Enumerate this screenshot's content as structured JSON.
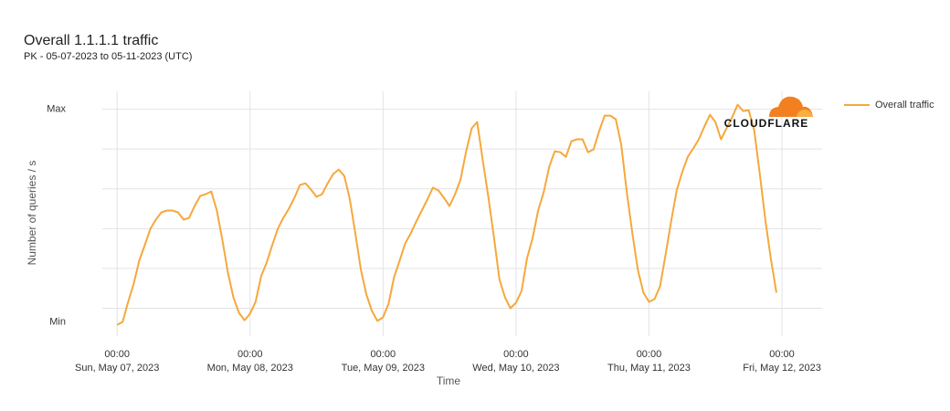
{
  "chart_data": {
    "type": "line",
    "title": "Overall 1.1.1.1 traffic",
    "subtitle": "PK - 05-07-2023 to 05-11-2023 (UTC)",
    "ylabel": "Number of queries / s",
    "xlabel": "Time",
    "watermark": "CLOUDFLARE",
    "legend": "right",
    "ylim": [
      -14,
      109
    ],
    "yticks": [
      {
        "value": -7,
        "label": "Min"
      },
      {
        "value": 100,
        "label": "Max"
      }
    ],
    "ygrid": [
      0,
      20,
      40,
      60,
      80,
      100
    ],
    "xlim": [
      "2023-05-06T21:20",
      "2023-05-12T07:15"
    ],
    "xticks": [
      {
        "value": "2023-05-07T00:00",
        "label": [
          "00:00",
          "Sun, May 07, 2023"
        ]
      },
      {
        "value": "2023-05-08T00:00",
        "label": [
          "00:00",
          "Mon, May 08, 2023"
        ]
      },
      {
        "value": "2023-05-09T00:00",
        "label": [
          "00:00",
          "Tue, May 09, 2023"
        ]
      },
      {
        "value": "2023-05-10T00:00",
        "label": [
          "00:00",
          "Wed, May 10, 2023"
        ]
      },
      {
        "value": "2023-05-11T00:00",
        "label": [
          "00:00",
          "Thu, May 11, 2023"
        ]
      },
      {
        "value": "2023-05-12T00:00",
        "label": [
          "00:00",
          "Fri, May 12, 2023"
        ]
      }
    ],
    "x": [
      "2023-05-07T00:00",
      "2023-05-07T01:00",
      "2023-05-07T02:00",
      "2023-05-07T03:00",
      "2023-05-07T04:00",
      "2023-05-07T05:00",
      "2023-05-07T06:00",
      "2023-05-07T07:00",
      "2023-05-07T08:00",
      "2023-05-07T09:00",
      "2023-05-07T10:00",
      "2023-05-07T11:00",
      "2023-05-07T12:00",
      "2023-05-07T13:00",
      "2023-05-07T14:00",
      "2023-05-07T15:00",
      "2023-05-07T16:00",
      "2023-05-07T17:00",
      "2023-05-07T18:00",
      "2023-05-07T19:00",
      "2023-05-07T20:00",
      "2023-05-07T21:00",
      "2023-05-07T22:00",
      "2023-05-07T23:00",
      "2023-05-08T00:00",
      "2023-05-08T01:00",
      "2023-05-08T02:00",
      "2023-05-08T03:00",
      "2023-05-08T04:00",
      "2023-05-08T05:00",
      "2023-05-08T06:00",
      "2023-05-08T07:00",
      "2023-05-08T08:00",
      "2023-05-08T09:00",
      "2023-05-08T10:00",
      "2023-05-08T11:00",
      "2023-05-08T12:00",
      "2023-05-08T13:00",
      "2023-05-08T14:00",
      "2023-05-08T15:00",
      "2023-05-08T16:00",
      "2023-05-08T17:00",
      "2023-05-08T18:00",
      "2023-05-08T19:00",
      "2023-05-08T20:00",
      "2023-05-08T21:00",
      "2023-05-08T22:00",
      "2023-05-08T23:00",
      "2023-05-09T00:00",
      "2023-05-09T01:00",
      "2023-05-09T02:00",
      "2023-05-09T03:00",
      "2023-05-09T04:00",
      "2023-05-09T05:00",
      "2023-05-09T06:00",
      "2023-05-09T07:00",
      "2023-05-09T08:00",
      "2023-05-09T09:00",
      "2023-05-09T10:00",
      "2023-05-09T11:00",
      "2023-05-09T12:00",
      "2023-05-09T13:00",
      "2023-05-09T14:00",
      "2023-05-09T15:00",
      "2023-05-09T16:00",
      "2023-05-09T17:00",
      "2023-05-09T18:00",
      "2023-05-09T19:00",
      "2023-05-09T20:00",
      "2023-05-09T21:00",
      "2023-05-09T22:00",
      "2023-05-09T23:00",
      "2023-05-10T00:00",
      "2023-05-10T01:00",
      "2023-05-10T02:00",
      "2023-05-10T03:00",
      "2023-05-10T04:00",
      "2023-05-10T05:00",
      "2023-05-10T06:00",
      "2023-05-10T07:00",
      "2023-05-10T08:00",
      "2023-05-10T09:00",
      "2023-05-10T10:00",
      "2023-05-10T11:00",
      "2023-05-10T12:00",
      "2023-05-10T13:00",
      "2023-05-10T14:00",
      "2023-05-10T15:00",
      "2023-05-10T16:00",
      "2023-05-10T17:00",
      "2023-05-10T18:00",
      "2023-05-10T19:00",
      "2023-05-10T20:00",
      "2023-05-10T21:00",
      "2023-05-10T22:00",
      "2023-05-10T23:00",
      "2023-05-11T00:00",
      "2023-05-11T01:00",
      "2023-05-11T02:00",
      "2023-05-11T03:00",
      "2023-05-11T04:00",
      "2023-05-11T05:00",
      "2023-05-11T06:00",
      "2023-05-11T07:00",
      "2023-05-11T08:00",
      "2023-05-11T09:00",
      "2023-05-11T10:00",
      "2023-05-11T11:00",
      "2023-05-11T12:00",
      "2023-05-11T13:00",
      "2023-05-11T14:00",
      "2023-05-11T15:00",
      "2023-05-11T16:00",
      "2023-05-11T17:00",
      "2023-05-11T18:00",
      "2023-05-11T19:00",
      "2023-05-11T20:00",
      "2023-05-11T21:00",
      "2023-05-11T22:00",
      "2023-05-11T23:00"
    ],
    "series": [
      {
        "name": "Overall traffic",
        "color": "#f6a83b",
        "values": [
          -8.3,
          -6.9,
          3.2,
          12.4,
          23.9,
          31.7,
          39.9,
          44.5,
          48.2,
          49.1,
          49.1,
          48.2,
          44.5,
          45.4,
          51.4,
          56.4,
          57.3,
          58.7,
          49.1,
          34.4,
          17.9,
          5.5,
          -2.3,
          -6.0,
          -2.8,
          3.2,
          16.1,
          22.9,
          31.7,
          39.9,
          45.4,
          50.0,
          55.5,
          61.9,
          62.8,
          59.6,
          56.0,
          57.3,
          62.8,
          67.4,
          69.7,
          66.5,
          55.0,
          37.6,
          19.3,
          6.9,
          -1.4,
          -6.4,
          -4.6,
          2.3,
          15.6,
          23.9,
          32.6,
          37.6,
          43.6,
          49.1,
          54.6,
          60.6,
          59.2,
          55.5,
          51.4,
          57.3,
          64.7,
          78.9,
          90.4,
          93.6,
          74.3,
          56.0,
          36.2,
          14.7,
          5.5,
          0,
          2.8,
          8.7,
          25.2,
          35.3,
          49.1,
          58.3,
          71.1,
          78.9,
          78.4,
          76.1,
          83.9,
          84.9,
          84.9,
          78.4,
          79.8,
          89.0,
          96.8,
          96.8,
          95.0,
          82.1,
          58.3,
          37.6,
          19.3,
          7.8,
          3.2,
          4.6,
          11.0,
          27.1,
          43.6,
          59.2,
          68.3,
          76.1,
          80.3,
          84.9,
          91.3,
          97.2,
          93.6,
          84.9,
          90.4,
          95.9,
          102.3,
          99.1,
          99.5,
          89.4,
          67.4,
          44.5,
          24.8,
          7.8
        ]
      }
    ]
  }
}
